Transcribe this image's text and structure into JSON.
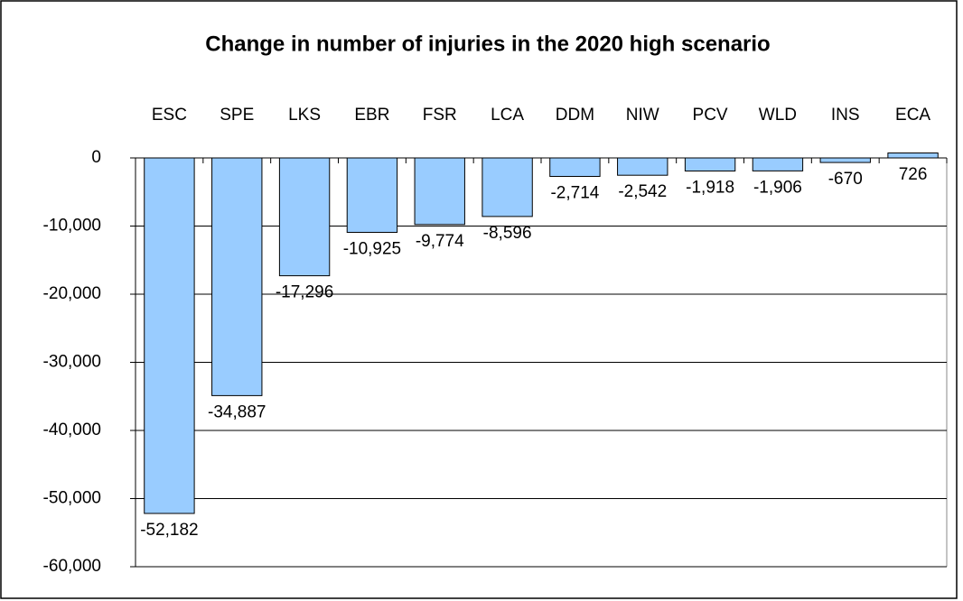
{
  "chart_data": {
    "type": "bar",
    "title": "Change in number of injuries in the 2020 high scenario",
    "categories": [
      "ESC",
      "SPE",
      "LKS",
      "EBR",
      "FSR",
      "LCA",
      "DDM",
      "NIW",
      "PCV",
      "WLD",
      "INS",
      "ECA"
    ],
    "values": [
      -52182,
      -34887,
      -17296,
      -10925,
      -9774,
      -8596,
      -2714,
      -2542,
      -1918,
      -1906,
      -670,
      726
    ],
    "value_labels": [
      "-52,182",
      "-34,887",
      "-17,296",
      "-10,925",
      "-9,774",
      "-8,596",
      "-2,714",
      "-2,542",
      "-1,918",
      "-1,906",
      "-670",
      "726"
    ],
    "color": "#99ccff",
    "ylim": [
      -60000,
      0
    ],
    "yticks": [
      {
        "value": -60000,
        "label": "-60,000"
      },
      {
        "value": -50000,
        "label": "-50,000"
      },
      {
        "value": -40000,
        "label": "-40,000"
      },
      {
        "value": -30000,
        "label": "-30,000"
      },
      {
        "value": -20000,
        "label": "-20,000"
      },
      {
        "value": -10000,
        "label": "-10,000"
      },
      0
    ],
    "grid": true
  }
}
